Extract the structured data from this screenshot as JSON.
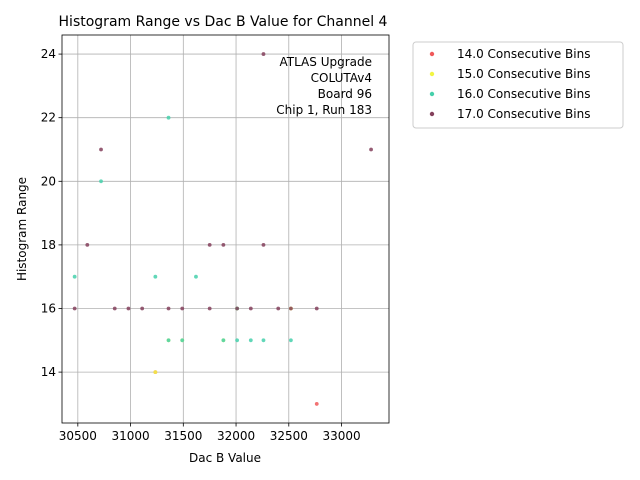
{
  "chart_data": {
    "type": "scatter",
    "title": "Histogram Range vs Dac B Value for Channel 4",
    "xlabel": "Dac B Value",
    "ylabel": "Histogram Range",
    "xlim": [
      30350,
      33450
    ],
    "ylim": [
      12.4,
      24.6
    ],
    "xticks": [
      30500,
      31000,
      31500,
      32000,
      32500,
      33000
    ],
    "yticks": [
      14,
      16,
      18,
      20,
      22,
      24
    ],
    "grid": true,
    "legend_position": "outside-top-right",
    "annotation": [
      "ATLAS Upgrade",
      "COLUTAv4",
      "Board 96",
      "Chip 1, Run 183"
    ],
    "series": [
      {
        "name": "14.0 Consecutive Bins",
        "color": "#f0595a",
        "points": [
          [
            31235,
            14
          ],
          [
            32765,
            13
          ]
        ]
      },
      {
        "name": "15.0 Consecutive Bins",
        "color": "#f2f542",
        "points": [
          [
            31235,
            14
          ],
          [
            31360,
            15
          ],
          [
            31490,
            15
          ],
          [
            31880,
            15
          ],
          [
            32520,
            16
          ],
          [
            32010,
            16
          ]
        ]
      },
      {
        "name": "16.0 Consecutive Bins",
        "color": "#45d0ab",
        "points": [
          [
            30470,
            17
          ],
          [
            30720,
            20
          ],
          [
            31235,
            17
          ],
          [
            31360,
            22
          ],
          [
            31360,
            15
          ],
          [
            31490,
            15
          ],
          [
            31620,
            17
          ],
          [
            31880,
            15
          ],
          [
            32010,
            15
          ],
          [
            32140,
            15
          ],
          [
            32260,
            15
          ],
          [
            32520,
            15
          ],
          [
            32010,
            16
          ]
        ]
      },
      {
        "name": "17.0 Consecutive Bins",
        "color": "#84405c",
        "points": [
          [
            30470,
            16
          ],
          [
            30590,
            18
          ],
          [
            30720,
            21
          ],
          [
            30850,
            16
          ],
          [
            30980,
            16
          ],
          [
            31110,
            16
          ],
          [
            31360,
            16
          ],
          [
            31490,
            16
          ],
          [
            31750,
            16
          ],
          [
            31750,
            18
          ],
          [
            31880,
            18
          ],
          [
            32010,
            16
          ],
          [
            32140,
            16
          ],
          [
            32260,
            24
          ],
          [
            32260,
            18
          ],
          [
            32400,
            16
          ],
          [
            32520,
            16
          ],
          [
            32765,
            16
          ],
          [
            33280,
            21
          ]
        ]
      }
    ]
  }
}
